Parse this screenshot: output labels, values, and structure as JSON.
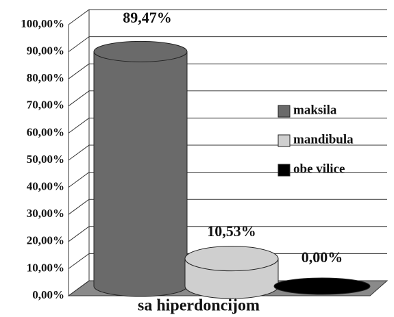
{
  "chart_data": {
    "type": "bar",
    "categories": [
      "sa hiperdoncijom"
    ],
    "series": [
      {
        "name": "maksila",
        "color": "#6a6a6a",
        "values": [
          89.47
        ],
        "value_labels": [
          "89,47%"
        ]
      },
      {
        "name": "mandibula",
        "color": "#cfcfcf",
        "values": [
          10.53
        ],
        "value_labels": [
          "10,53%"
        ]
      },
      {
        "name": "obe vilice",
        "color": "#000000",
        "values": [
          0
        ],
        "value_labels": [
          "0,00%"
        ]
      }
    ],
    "ylim": [
      0,
      100
    ],
    "yticks": [
      {
        "value": 0,
        "label": "0,00%"
      },
      {
        "value": 10,
        "label": "10,00%"
      },
      {
        "value": 20,
        "label": "20,00%"
      },
      {
        "value": 30,
        "label": "30,00%"
      },
      {
        "value": 40,
        "label": "40,00%"
      },
      {
        "value": 50,
        "label": "50,00%"
      },
      {
        "value": 60,
        "label": "60,00%"
      },
      {
        "value": 70,
        "label": "70,00%"
      },
      {
        "value": 80,
        "label": "80,00%"
      },
      {
        "value": 90,
        "label": "90,00%"
      },
      {
        "value": 100,
        "label": "100,00%"
      }
    ],
    "grid": true,
    "legend": "right"
  }
}
